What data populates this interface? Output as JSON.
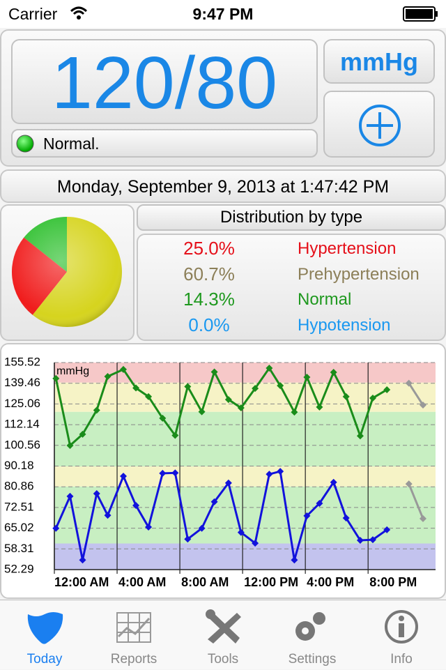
{
  "status_bar": {
    "carrier": "Carrier",
    "time": "9:47 PM"
  },
  "reading": {
    "value": "120/80",
    "unit": "mmHg",
    "status": "Normal."
  },
  "date": "Monday, September 9, 2013 at 1:47:42 PM",
  "tabs": [
    "Today",
    "Reports",
    "Tools",
    "Settings",
    "Info"
  ],
  "chart_data": [
    {
      "type": "pie",
      "title": "Distribution by type",
      "categories": [
        "Hypertension",
        "Prehypertension",
        "Normal",
        "Hypotension"
      ],
      "values": [
        25,
        60.7,
        14.3,
        0
      ],
      "value_labels": [
        "25.0%",
        "60.7%",
        "14.3%",
        "0.0%"
      ],
      "colors": [
        "#e5101a",
        "#8c7f58",
        "#1e981e",
        "#1a98f0"
      ],
      "slice_colors": [
        "#f01c1c",
        "#d6d41e",
        "#2fc02f",
        "#2a7ff0"
      ]
    },
    {
      "type": "line",
      "y_unit": "mmHg",
      "log_y": true,
      "xlim": [
        0,
        24.3
      ],
      "xticks": [
        {
          "value": 0,
          "label": "12:00 AM"
        },
        {
          "value": 4,
          "label": "4:00 AM"
        },
        {
          "value": 8,
          "label": "8:00 AM"
        },
        {
          "value": 12,
          "label": "12:00 PM"
        },
        {
          "value": 16,
          "label": "4:00 PM"
        },
        {
          "value": 20,
          "label": "8:00 PM"
        }
      ],
      "ylim": [
        52.29,
        155.52
      ],
      "yticks": [
        155.52,
        139.46,
        125.06,
        112.14,
        100.56,
        90.18,
        80.86,
        72.51,
        65.02,
        58.31,
        52.29
      ],
      "grid": true,
      "bands": [
        {
          "from": 52.29,
          "to": 60,
          "color": "#c3c3ee"
        },
        {
          "from": 60,
          "to": 81,
          "color": "#c8efc2"
        },
        {
          "from": 81,
          "to": 90,
          "color": "#f6f3c6"
        },
        {
          "from": 90,
          "to": 120,
          "color": "#c8efc2"
        },
        {
          "from": 120,
          "to": 140,
          "color": "#f6f3c6"
        },
        {
          "from": 140,
          "to": 155.52,
          "color": "#f6c8c8"
        }
      ],
      "x": [
        0.1,
        1.0,
        1.8,
        2.7,
        3.4,
        4.4,
        5.2,
        6.0,
        6.9,
        7.7,
        8.5,
        9.4,
        10.2,
        11.1,
        11.9,
        12.8,
        13.7,
        14.4,
        15.3,
        16.1,
        16.9,
        17.8,
        18.6,
        19.5,
        20.3,
        21.2
      ],
      "series": [
        {
          "color": "#1a8c1a",
          "values": [
            143,
            100.5,
            106.6,
            121,
            144.5,
            150,
            136,
            130,
            116,
            106,
            137,
            120,
            148,
            128,
            122.5,
            135.7,
            151,
            137.7,
            119.8,
            144,
            123,
            147.7,
            130,
            105.7,
            129,
            134.8
          ]
        },
        {
          "color": "#1212dc",
          "values": [
            65,
            76.9,
            55,
            78,
            69.6,
            85.5,
            73.3,
            65.4,
            86.8,
            87,
            61.4,
            65,
            74.7,
            82.5,
            63.6,
            60.1,
            86.4,
            87.7,
            55,
            69.4,
            74.1,
            82.8,
            68.6,
            61,
            61.2,
            64.5
          ]
        },
        {
          "color": "#999999",
          "x": [
            22.6,
            23.5
          ],
          "values": [
            139.5,
            124.3
          ]
        },
        {
          "color": "#999999",
          "x": [
            22.6,
            23.5
          ],
          "values": [
            82.1,
            68.4
          ]
        }
      ]
    }
  ]
}
